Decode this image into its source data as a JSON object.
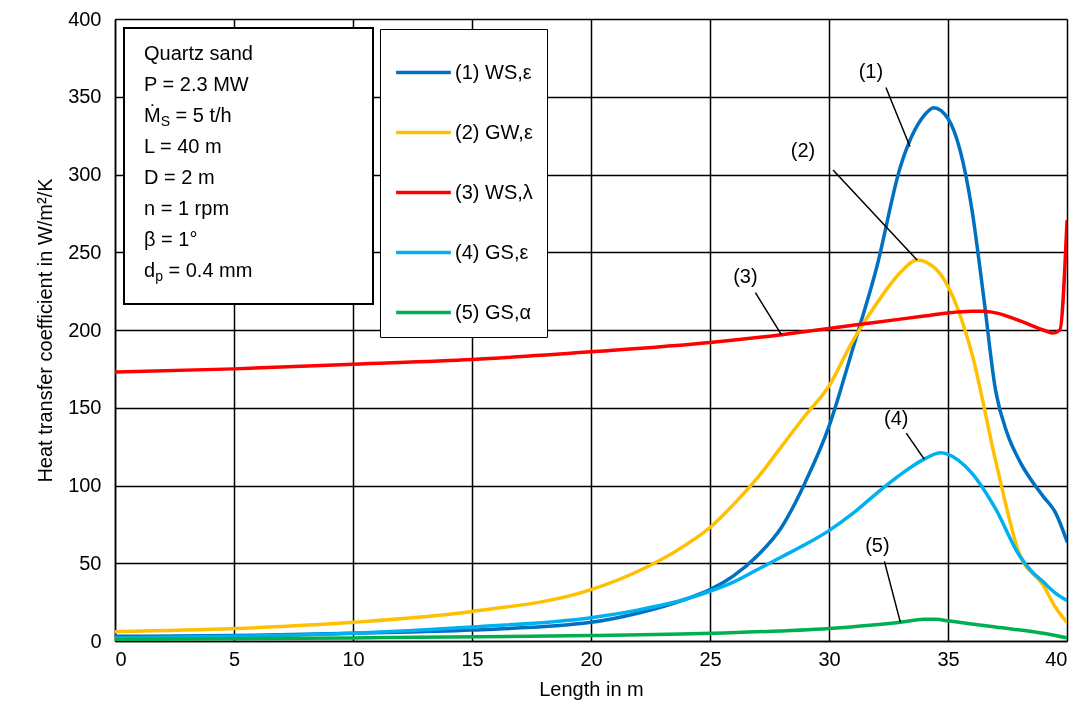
{
  "chart_data": {
    "type": "line",
    "xlabel": "Length in m",
    "ylabel": "Heat transfer coefficient in W/m²/K",
    "xlim": [
      0,
      40
    ],
    "xticks": [
      0,
      5,
      10,
      15,
      20,
      25,
      30,
      35,
      40
    ],
    "ylim": [
      0,
      400
    ],
    "yticks": [
      0,
      50,
      100,
      150,
      200,
      250,
      300,
      350,
      400
    ],
    "grid": true,
    "legend": "top left",
    "line_style": "solid",
    "marker": "none",
    "series": [
      {
        "name": "(1) WS,ε",
        "color": "#0070c0",
        "x": [
          0,
          5,
          10,
          15,
          20,
          22,
          24,
          25,
          26,
          27,
          28,
          29,
          30,
          31,
          32,
          33,
          34,
          34.4,
          35,
          36,
          36.5,
          37,
          37.5,
          38,
          39,
          39.5,
          40
        ],
        "values": [
          3,
          3.5,
          5,
          7,
          12,
          18,
          27,
          33,
          42,
          55,
          73,
          102,
          138,
          188,
          240,
          305,
          338,
          343,
          336,
          278,
          221,
          161,
          133,
          116,
          93,
          83,
          64
        ]
      },
      {
        "name": "(2) GW,ε",
        "color": "#ffc000",
        "x": [
          0,
          5,
          10,
          15,
          20,
          22,
          24,
          25,
          26,
          27,
          28,
          29,
          30,
          31,
          32,
          33,
          33.7,
          34.5,
          35,
          36,
          37,
          38,
          39,
          39.5,
          40
        ],
        "values": [
          6,
          8,
          12,
          19,
          33,
          45,
          62,
          73,
          88,
          105,
          125,
          145,
          164,
          193,
          217,
          237,
          245,
          239,
          228,
          185,
          116,
          56,
          36,
          22,
          12
        ]
      },
      {
        "name": "(3) WS,λ",
        "color": "#ff0000",
        "x": [
          0,
          5,
          10,
          15,
          20,
          25,
          28,
          30,
          32,
          34,
          35,
          36,
          36.5,
          37,
          38,
          39,
          39.4,
          39.7,
          40
        ],
        "values": [
          173,
          175,
          178,
          181,
          186,
          192,
          197,
          201,
          205,
          209,
          211,
          212,
          212,
          211,
          206,
          200,
          198,
          200,
          270
        ]
      },
      {
        "name": "(4) GS,ε",
        "color": "#00b0f0",
        "x": [
          0,
          5,
          10,
          15,
          20,
          22,
          24,
          25,
          26,
          27,
          28,
          29,
          30,
          31,
          32,
          33,
          34,
          34.7,
          35,
          36,
          37,
          38,
          38.5,
          39,
          39.5,
          40
        ],
        "values": [
          2,
          3,
          5,
          9,
          15,
          20,
          27,
          32,
          38,
          46,
          54,
          62,
          71,
          82,
          95,
          107,
          117,
          121,
          120,
          108,
          85,
          55,
          45,
          38,
          31,
          26
        ]
      },
      {
        "name": "(5) GS,α",
        "color": "#00b050",
        "x": [
          0,
          10,
          20,
          25,
          30,
          33,
          34,
          34.5,
          35,
          37,
          39,
          40
        ],
        "values": [
          1,
          2,
          3.5,
          5,
          8,
          12,
          14,
          14,
          13,
          9,
          5,
          2
        ]
      }
    ],
    "annotations": [
      "Quartz sand",
      "P = 2.3 MW",
      "Ṁ$_{S}$ = 5 t/h",
      "L = 40 m",
      "D = 2 m",
      "n = 1 rpm",
      "β = 1°",
      "d$_{p}$ = 0.4 mm",
      {
        "text": "(1)",
        "x": 33.4,
        "y": 318
      },
      {
        "text": "(2)",
        "x": 33.7,
        "y": 245
      },
      {
        "text": "(3)",
        "x": 28,
        "y": 197
      },
      {
        "text": "(4)",
        "x": 34,
        "y": 117
      },
      {
        "text": "(5)",
        "x": 33,
        "y": 12
      }
    ]
  }
}
